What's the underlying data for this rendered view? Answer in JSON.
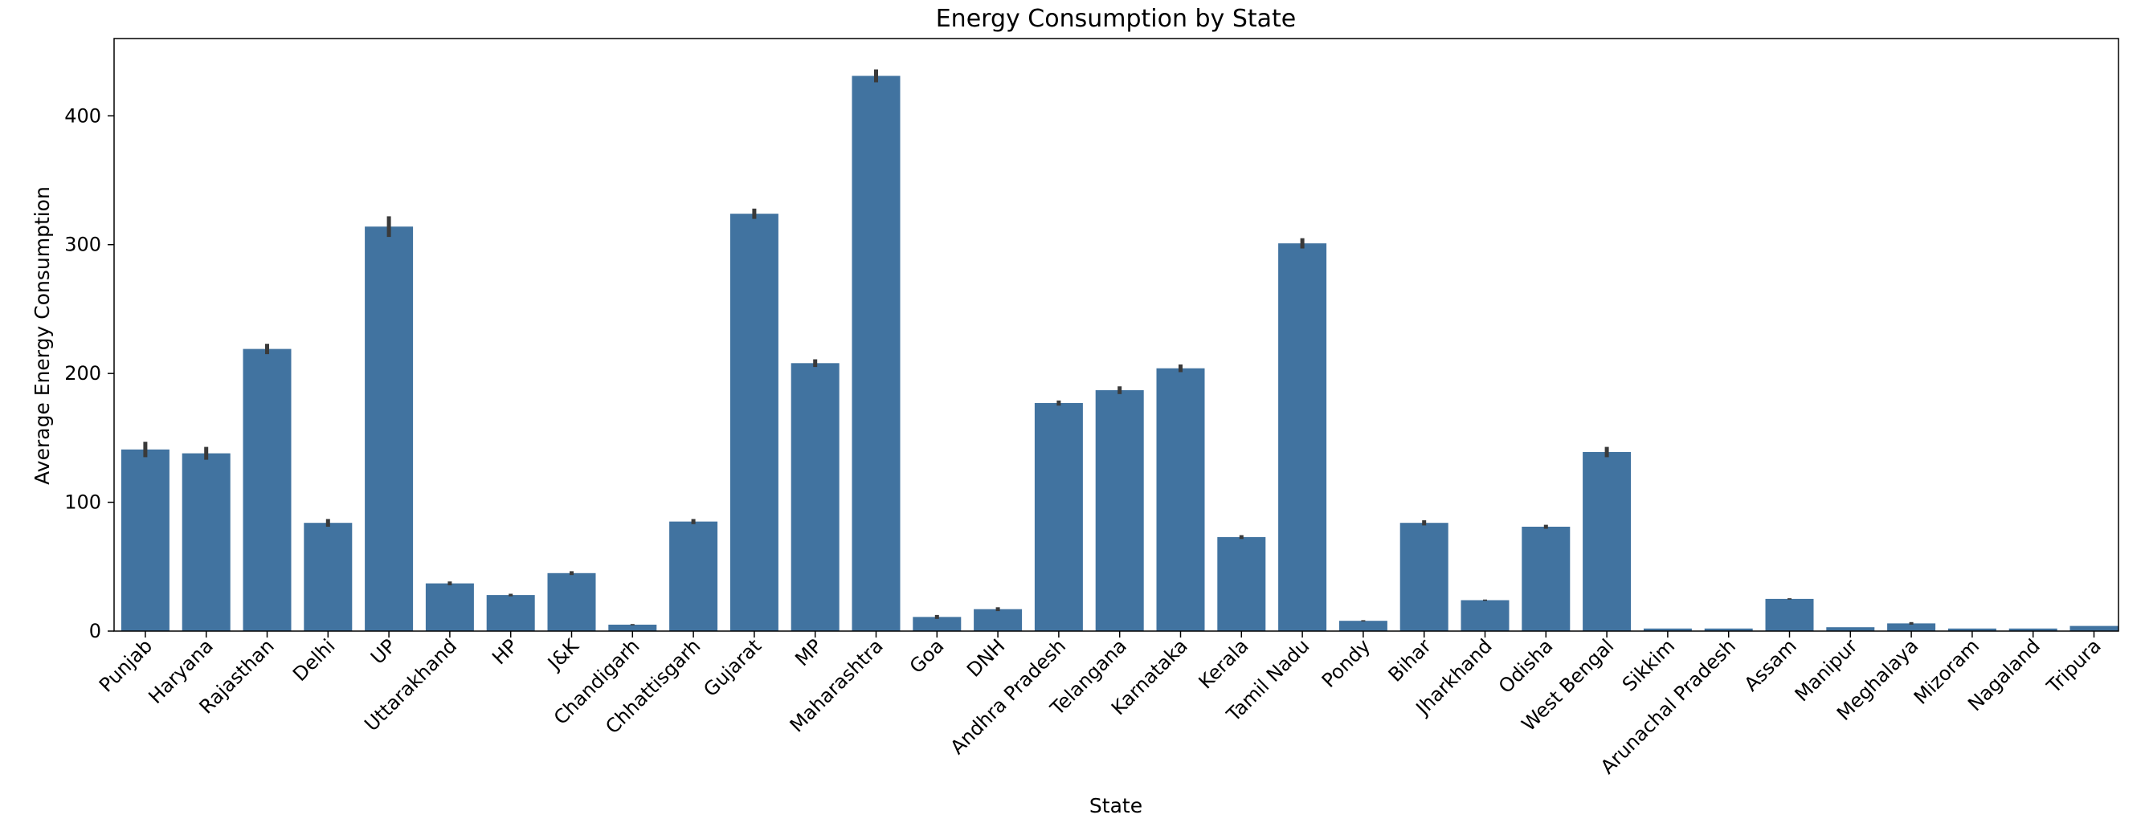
{
  "chart_data": {
    "type": "bar",
    "title": "Energy Consumption by State",
    "xlabel": "State",
    "ylabel": "Average Energy Consumption",
    "ylim": [
      0,
      460
    ],
    "yticks": [
      0,
      100,
      200,
      300,
      400
    ],
    "grid": false,
    "bar_color": "#4173a0",
    "error_color": "#3a3a3a",
    "categories": [
      "Punjab",
      "Haryana",
      "Rajasthan",
      "Delhi",
      "UP",
      "Uttarakhand",
      "HP",
      "J&K",
      "Chandigarh",
      "Chhattisgarh",
      "Gujarat",
      "MP",
      "Maharashtra",
      "Goa",
      "DNH",
      "Andhra Pradesh",
      "Telangana",
      "Karnataka",
      "Kerala",
      "Tamil Nadu",
      "Pondy",
      "Bihar",
      "Jharkhand",
      "Odisha",
      "West Bengal",
      "Sikkim",
      "Arunachal Pradesh",
      "Assam",
      "Manipur",
      "Meghalaya",
      "Mizoram",
      "Nagaland",
      "Tripura"
    ],
    "values": [
      141,
      138,
      219,
      84,
      314,
      37,
      28,
      45,
      5,
      85,
      324,
      208,
      431,
      11,
      17,
      177,
      187,
      204,
      73,
      301,
      8,
      84,
      24,
      81,
      139,
      2,
      2,
      25,
      3,
      6,
      2,
      2,
      4
    ],
    "error": [
      6,
      5,
      4,
      3,
      8,
      1.5,
      1,
      1.5,
      0.5,
      2,
      4,
      3,
      5,
      1.5,
      1.5,
      2,
      3,
      3,
      1.5,
      4,
      0.5,
      2,
      0.5,
      1.5,
      4,
      0.3,
      0.3,
      0.5,
      0.3,
      1,
      0.3,
      0.3,
      0.3
    ]
  }
}
